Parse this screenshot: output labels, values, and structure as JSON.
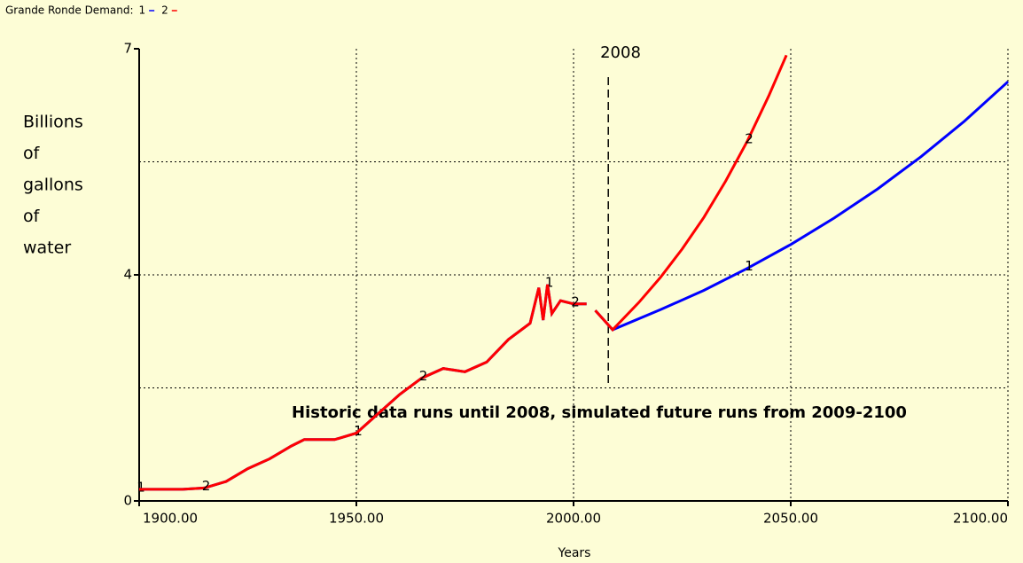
{
  "chart_data": {
    "type": "line",
    "title": "Grande Ronde Demand:",
    "ylabel": [
      "Billions",
      "of",
      "gallons",
      "of",
      "water"
    ],
    "xlabel": "Years",
    "annotation": "Historic data runs until 2008, simulated future runs from 2009-2100",
    "vline": 2008,
    "xlim": [
      1900,
      2100
    ],
    "xticks": [
      {
        "value": 1900,
        "label": "1900.00"
      },
      {
        "value": 1950,
        "label": "1950.00"
      },
      {
        "value": 2000,
        "label": "2000.00"
      },
      {
        "value": 2050,
        "label": "2050.00"
      },
      {
        "value": 2100,
        "label": "2100.00"
      }
    ],
    "ylim": [
      0,
      7
    ],
    "yticks": [
      0,
      {
        "value": 3.5,
        "label": "4"
      },
      7
    ],
    "ygrid": [
      1.75,
      3.5,
      5.25
    ],
    "grid": true,
    "series": [
      {
        "name": "1",
        "color": "#0000ff",
        "x": [
          1900,
          1905,
          1910,
          1915,
          1920,
          1925,
          1930,
          1935,
          1938,
          1940,
          1945,
          1950,
          1955,
          1960,
          1965,
          1970,
          1975,
          1980,
          1985,
          1990,
          1992,
          1993,
          1994,
          1995,
          1997,
          2000,
          2003,
          2004,
          2005,
          2007,
          2009,
          2020,
          2030,
          2040,
          2050,
          2060,
          2070,
          2080,
          2090,
          2100
        ],
        "values": [
          0.18,
          0.18,
          0.18,
          0.2,
          0.3,
          0.5,
          0.65,
          0.85,
          0.95,
          0.95,
          0.95,
          1.05,
          1.35,
          1.65,
          1.9,
          2.05,
          2.0,
          2.15,
          2.5,
          2.75,
          3.3,
          2.8,
          3.35,
          2.9,
          3.1,
          3.05,
          3.05,
          null,
          2.95,
          2.8,
          2.65,
          2.96,
          3.26,
          3.6,
          3.97,
          4.38,
          4.83,
          5.33,
          5.88,
          6.49
        ]
      },
      {
        "name": "2",
        "color": "#ff0000",
        "x": [
          1900,
          1905,
          1910,
          1915,
          1920,
          1925,
          1930,
          1935,
          1938,
          1940,
          1945,
          1950,
          1955,
          1960,
          1965,
          1970,
          1975,
          1980,
          1985,
          1990,
          1992,
          1993,
          1994,
          1995,
          1997,
          2000,
          2003,
          2004,
          2005,
          2007,
          2009,
          2015,
          2020,
          2025,
          2030,
          2035,
          2040,
          2045,
          2049
        ],
        "values": [
          0.18,
          0.18,
          0.18,
          0.2,
          0.3,
          0.5,
          0.65,
          0.85,
          0.95,
          0.95,
          0.95,
          1.05,
          1.35,
          1.65,
          1.9,
          2.05,
          2.0,
          2.15,
          2.5,
          2.75,
          3.3,
          2.8,
          3.35,
          2.9,
          3.1,
          3.05,
          3.05,
          null,
          2.95,
          2.8,
          2.65,
          3.07,
          3.46,
          3.9,
          4.39,
          4.95,
          5.57,
          6.28,
          6.9
        ]
      }
    ]
  }
}
